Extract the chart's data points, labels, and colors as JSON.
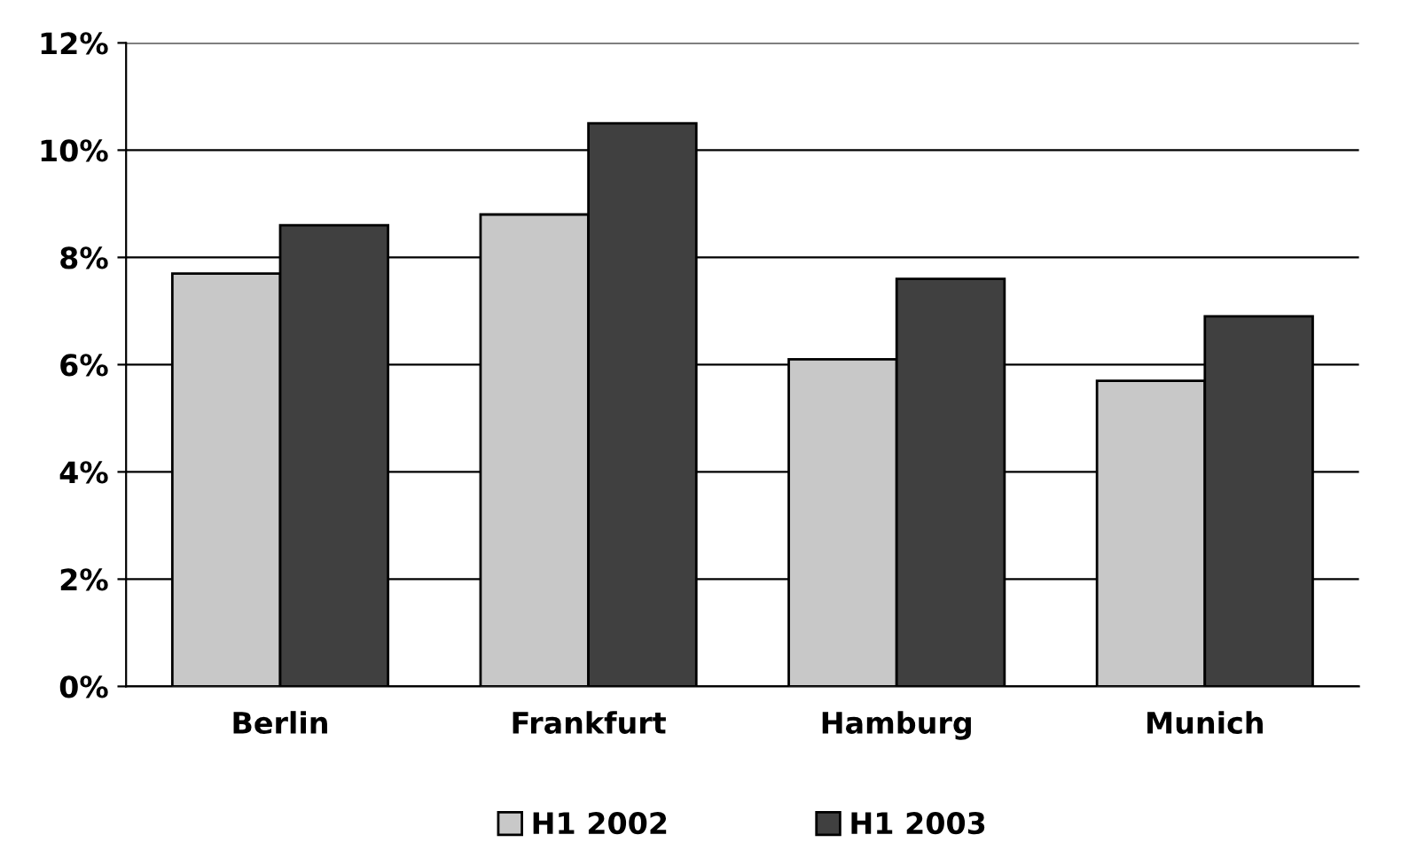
{
  "chart_data": {
    "type": "bar",
    "categories": [
      "Berlin",
      "Frankfurt",
      "Hamburg",
      "Munich"
    ],
    "series": [
      {
        "name": "H1 2002",
        "color": "#c8c8c8",
        "values": [
          7.7,
          8.8,
          6.1,
          5.7
        ]
      },
      {
        "name": "H1 2003",
        "color": "#404040",
        "values": [
          8.6,
          10.5,
          7.6,
          6.9
        ]
      }
    ],
    "ylim": [
      0,
      12
    ],
    "yticks": [
      {
        "value": 0,
        "label": "0%"
      },
      {
        "value": 2,
        "label": "2%"
      },
      {
        "value": 4,
        "label": "4%"
      },
      {
        "value": 6,
        "label": "6%"
      },
      {
        "value": 8,
        "label": "8%"
      },
      {
        "value": 10,
        "label": "10%"
      },
      {
        "value": 12,
        "label": "12%"
      }
    ],
    "grid": "y",
    "legend": "bottom"
  }
}
